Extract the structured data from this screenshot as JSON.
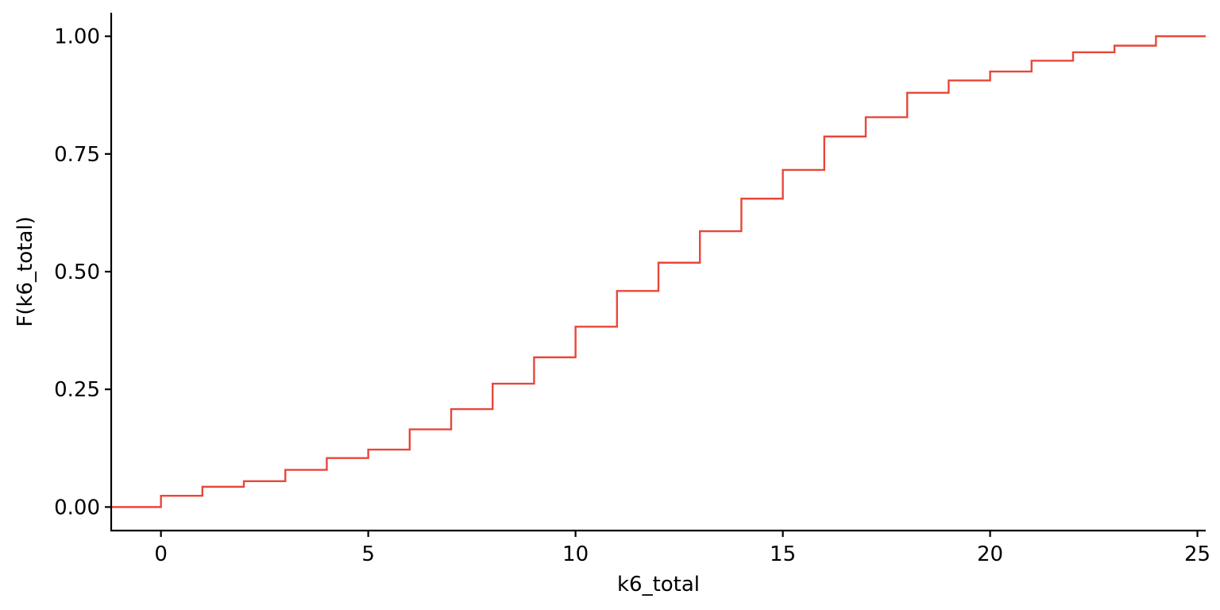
{
  "chart_data": {
    "type": "line",
    "subtype": "ecdf-step",
    "title": "",
    "xlabel": "k6_total",
    "ylabel": "F(k6_total)",
    "xlim": [
      -1.2,
      25.2
    ],
    "ylim": [
      -0.05,
      1.05
    ],
    "x_ticks": [
      0,
      5,
      10,
      15,
      20,
      25
    ],
    "x_tick_labels": [
      "0",
      "5",
      "10",
      "15",
      "20",
      "25"
    ],
    "y_ticks": [
      0,
      0.25,
      0.5,
      0.75,
      1.0
    ],
    "y_tick_labels": [
      "0.00",
      "0.25",
      "0.50",
      "0.75",
      "1.00"
    ],
    "grid": false,
    "line_color": "#E8473A",
    "series": [
      {
        "x": [
          0,
          1,
          2,
          3,
          4,
          5,
          6,
          7,
          8,
          9,
          10,
          11,
          12,
          13,
          14,
          15,
          16,
          17,
          18,
          19,
          20,
          21,
          22,
          23,
          24
        ],
        "y": [
          0.024,
          0.043,
          0.055,
          0.079,
          0.104,
          0.122,
          0.165,
          0.208,
          0.262,
          0.318,
          0.383,
          0.459,
          0.519,
          0.586,
          0.655,
          0.716,
          0.787,
          0.828,
          0.88,
          0.906,
          0.925,
          0.948,
          0.966,
          0.98,
          1.0
        ]
      }
    ]
  }
}
